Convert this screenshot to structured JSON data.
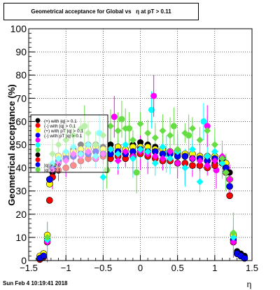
{
  "window": {
    "timestamp": "Sun Feb  4 10:19:41 2018"
  },
  "chart_data": {
    "type": "scatter",
    "title": "Geometrical acceptance for Global vs   η at pT > 0.11",
    "xlabel": "η",
    "ylabel": "Geometrical acceptance (%)",
    "xlim": [
      -1.5,
      1.5
    ],
    "ylim": [
      0,
      100
    ],
    "xticks": [
      -1.5,
      -1,
      -0.5,
      0,
      0.5,
      1,
      1.5
    ],
    "xtick_labels": [
      "−1.5",
      "−1",
      "−0.5",
      "0",
      "0.5",
      "1",
      "1.5"
    ],
    "yticks": [
      0,
      10,
      20,
      30,
      40,
      50,
      60,
      70,
      80,
      90,
      100
    ],
    "ytick_labels": [
      "0",
      "10",
      "20",
      "30",
      "40",
      "50",
      "60",
      "70",
      "80",
      "90",
      "100"
    ],
    "grid": true,
    "legend_position": "upper-left",
    "legend_labels": [
      "(+) with |q| > 0.1",
      "(-) with |q| > 0.1",
      "(+) with pT |q| > 0.1",
      "(-) with pT |q| > 0.1",
      "",
      "",
      "",
      "",
      "",
      "|q| > 2.0",
      "|q| > 2.1"
    ],
    "series": [
      {
        "color": "#000000",
        "points": [
          [
            -1.35,
            1
          ],
          [
            -1.3,
            2
          ],
          [
            -1.25,
            9
          ],
          [
            -1.22,
            33
          ],
          [
            -1.18,
            38
          ],
          [
            -1.1,
            42
          ],
          [
            -1,
            45
          ],
          [
            -0.9,
            48
          ],
          [
            -0.8,
            50
          ],
          [
            -0.7,
            50
          ],
          [
            -0.6,
            50
          ],
          [
            -0.5,
            49
          ],
          [
            -0.4,
            50
          ],
          [
            -0.3,
            49
          ],
          [
            -0.2,
            48
          ],
          [
            -0.1,
            50
          ],
          [
            0,
            51
          ],
          [
            0.1,
            50
          ],
          [
            0.2,
            49
          ],
          [
            0.3,
            48
          ],
          [
            0.4,
            47
          ],
          [
            0.5,
            46
          ],
          [
            0.6,
            46
          ],
          [
            0.7,
            44
          ],
          [
            0.8,
            44
          ],
          [
            0.9,
            43
          ],
          [
            1,
            42
          ],
          [
            1.1,
            43
          ],
          [
            1.15,
            40
          ],
          [
            1.2,
            38
          ],
          [
            1.25,
            9
          ],
          [
            1.3,
            4
          ],
          [
            1.35,
            3
          ],
          [
            1.4,
            2
          ]
        ]
      },
      {
        "color": "#ff0000",
        "points": [
          [
            -1.35,
            0.5
          ],
          [
            -1.3,
            1.5
          ],
          [
            -1.25,
            8
          ],
          [
            -1.22,
            26
          ],
          [
            -1.18,
            36
          ],
          [
            -1.1,
            39
          ],
          [
            -1,
            40
          ],
          [
            -0.9,
            41
          ],
          [
            -0.8,
            43
          ],
          [
            -0.7,
            44
          ],
          [
            -0.6,
            44
          ],
          [
            -0.5,
            45
          ],
          [
            -0.4,
            44
          ],
          [
            -0.3,
            45
          ],
          [
            -0.2,
            44
          ],
          [
            -0.1,
            45
          ],
          [
            0,
            46
          ],
          [
            0.1,
            45
          ],
          [
            0.2,
            44
          ],
          [
            0.3,
            43
          ],
          [
            0.4,
            43
          ],
          [
            0.5,
            42
          ],
          [
            0.6,
            42
          ],
          [
            0.7,
            41
          ],
          [
            0.8,
            41
          ],
          [
            0.9,
            40
          ],
          [
            1,
            41
          ],
          [
            1.1,
            42
          ],
          [
            1.15,
            38
          ],
          [
            1.2,
            28
          ],
          [
            1.25,
            8
          ],
          [
            1.3,
            3
          ],
          [
            1.35,
            2
          ],
          [
            1.4,
            1
          ]
        ]
      },
      {
        "color": "#ffff00",
        "points": [
          [
            -1.35,
            2
          ],
          [
            -1.3,
            3
          ],
          [
            -1.25,
            11
          ],
          [
            -1.22,
            33
          ],
          [
            -1.18,
            41
          ],
          [
            -1.1,
            45
          ],
          [
            -1,
            46
          ],
          [
            -0.9,
            47
          ],
          [
            -0.8,
            48
          ],
          [
            -0.7,
            48
          ],
          [
            -0.6,
            49
          ],
          [
            -0.5,
            48
          ],
          [
            -0.4,
            48
          ],
          [
            -0.3,
            49
          ],
          [
            -0.2,
            48
          ],
          [
            -0.1,
            49
          ],
          [
            0,
            49
          ],
          [
            0.1,
            49
          ],
          [
            0.2,
            48
          ],
          [
            0.3,
            48
          ],
          [
            0.4,
            47
          ],
          [
            0.5,
            47
          ],
          [
            0.6,
            46
          ],
          [
            0.7,
            46
          ],
          [
            0.8,
            45
          ],
          [
            0.9,
            45
          ],
          [
            1,
            45
          ],
          [
            1.1,
            44
          ],
          [
            1.15,
            42
          ],
          [
            1.2,
            35
          ],
          [
            1.25,
            11
          ],
          [
            1.3,
            3
          ],
          [
            1.35,
            2
          ],
          [
            1.4,
            1
          ]
        ]
      },
      {
        "color": "#0000ff",
        "points": [
          [
            -1.35,
            1
          ],
          [
            -1.3,
            2
          ],
          [
            -1.25,
            9
          ],
          [
            -1.22,
            35
          ],
          [
            -1.18,
            40
          ],
          [
            -1.1,
            43
          ],
          [
            -1,
            44
          ],
          [
            -0.9,
            45
          ],
          [
            -0.8,
            46
          ],
          [
            -0.7,
            46
          ],
          [
            -0.6,
            47
          ],
          [
            -0.5,
            46
          ],
          [
            -0.4,
            46
          ],
          [
            -0.3,
            47
          ],
          [
            -0.2,
            46
          ],
          [
            -0.1,
            47
          ],
          [
            0,
            48
          ],
          [
            0.1,
            47
          ],
          [
            0.2,
            47
          ],
          [
            0.3,
            46
          ],
          [
            0.4,
            46
          ],
          [
            0.5,
            45
          ],
          [
            0.6,
            45
          ],
          [
            0.7,
            44
          ],
          [
            0.8,
            44
          ],
          [
            0.9,
            43
          ],
          [
            1,
            44
          ],
          [
            1.1,
            44
          ],
          [
            1.15,
            40
          ],
          [
            1.2,
            32
          ],
          [
            1.25,
            9
          ],
          [
            1.3,
            3
          ],
          [
            1.35,
            2
          ],
          [
            1.4,
            1
          ]
        ]
      },
      {
        "color": "#ff00ff",
        "points": [
          [
            -1.25,
            8
          ],
          [
            -1.18,
            39
          ],
          [
            -1.1,
            42
          ],
          [
            -1,
            43
          ],
          [
            -0.9,
            46
          ],
          [
            -0.8,
            45
          ],
          [
            -0.7,
            47
          ],
          [
            -0.6,
            44
          ],
          [
            -0.5,
            46
          ],
          [
            -0.4,
            48
          ],
          [
            -0.3,
            43
          ],
          [
            -0.2,
            47
          ],
          [
            -0.1,
            45
          ],
          [
            0,
            47
          ],
          [
            0.1,
            46
          ],
          [
            0.2,
            45
          ],
          [
            0.3,
            44
          ],
          [
            0.4,
            47
          ],
          [
            0.5,
            42
          ],
          [
            0.6,
            40
          ],
          [
            0.7,
            44
          ],
          [
            0.8,
            43
          ],
          [
            0.9,
            41
          ],
          [
            1,
            43
          ],
          [
            1.1,
            45
          ],
          [
            1.2,
            35
          ],
          [
            1.25,
            8
          ]
        ]
      },
      {
        "color": "#00ffff",
        "points": [
          [
            -1.25,
            9
          ],
          [
            -1.18,
            42
          ],
          [
            -1.1,
            44
          ],
          [
            -1,
            47
          ],
          [
            -0.9,
            49
          ],
          [
            -0.8,
            46
          ],
          [
            -0.7,
            50
          ],
          [
            -0.6,
            45
          ],
          [
            -0.5,
            36
          ],
          [
            -0.4,
            48
          ],
          [
            -0.3,
            46
          ],
          [
            -0.2,
            50
          ],
          [
            -0.1,
            44
          ],
          [
            0,
            48
          ],
          [
            0.1,
            47
          ],
          [
            0.2,
            42
          ],
          [
            0.3,
            49
          ],
          [
            0.4,
            44
          ],
          [
            0.5,
            47
          ],
          [
            0.6,
            40
          ],
          [
            0.7,
            48
          ],
          [
            0.8,
            34
          ],
          [
            0.9,
            45
          ],
          [
            1,
            47
          ],
          [
            1.1,
            42
          ],
          [
            1.15,
            38
          ],
          [
            1.25,
            10
          ]
        ]
      },
      {
        "color": "#66dd44",
        "points": [
          [
            -1.25,
            10
          ],
          [
            -1.18,
            46
          ],
          [
            -1.1,
            50
          ],
          [
            -1,
            52
          ],
          [
            -0.9,
            54
          ],
          [
            -0.8,
            57
          ],
          [
            -0.7,
            55
          ],
          [
            -0.6,
            50
          ],
          [
            -0.5,
            54
          ],
          [
            -0.4,
            58
          ],
          [
            -0.3,
            56
          ],
          [
            -0.2,
            57
          ],
          [
            -0.1,
            52
          ],
          [
            0,
            59
          ],
          [
            0.1,
            55
          ],
          [
            0.2,
            53
          ],
          [
            0.3,
            56
          ],
          [
            0.4,
            54
          ],
          [
            0.5,
            48
          ],
          [
            0.6,
            55
          ],
          [
            0.7,
            57
          ],
          [
            0.8,
            52
          ],
          [
            0.9,
            56
          ],
          [
            1,
            50
          ],
          [
            1.1,
            44
          ],
          [
            1.15,
            38
          ],
          [
            1.25,
            12
          ]
        ]
      }
    ],
    "error_points": [
      [
        -0.75,
        58,
        9
      ],
      [
        -0.55,
        55,
        8
      ],
      [
        -0.35,
        62,
        9
      ],
      [
        -0.25,
        61,
        8
      ],
      [
        -0.15,
        57,
        7
      ],
      [
        0.15,
        65,
        8
      ],
      [
        0.18,
        71,
        9
      ],
      [
        0.45,
        58,
        8
      ],
      [
        0.65,
        54,
        9
      ],
      [
        0.85,
        60,
        8
      ],
      [
        0.9,
        58,
        9
      ],
      [
        -0.45,
        39,
        8
      ],
      [
        -0.05,
        38,
        9
      ],
      [
        0.35,
        46,
        8
      ],
      [
        1.02,
        39,
        8
      ]
    ]
  }
}
